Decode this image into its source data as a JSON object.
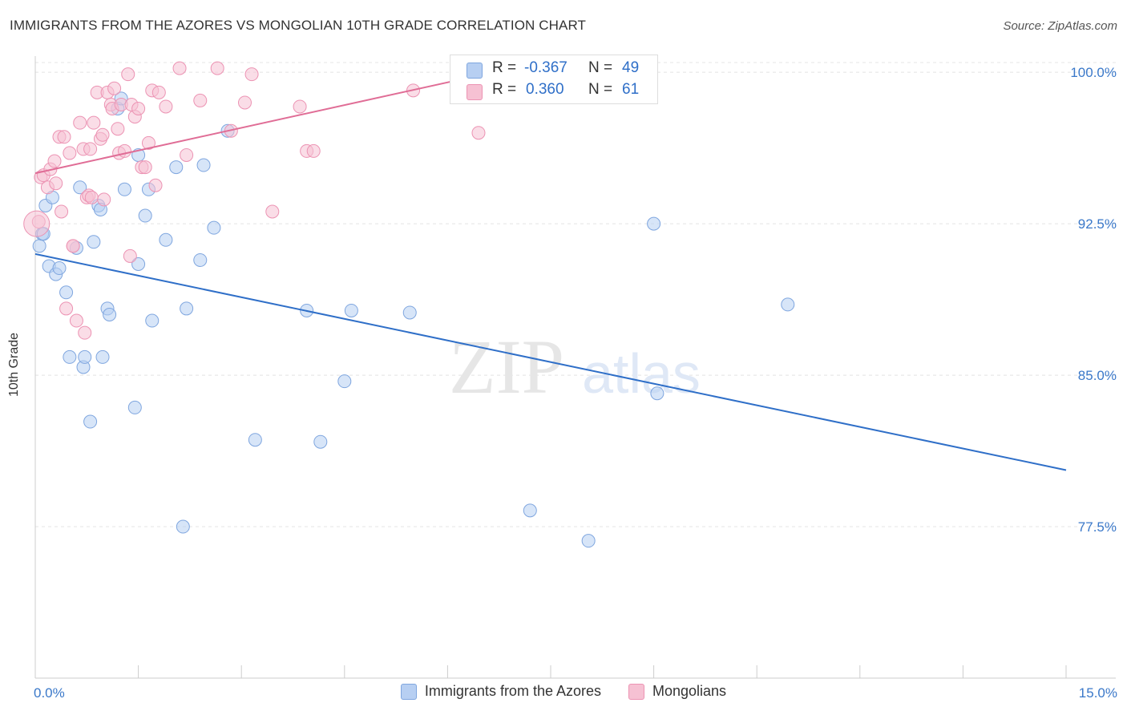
{
  "title": "IMMIGRANTS FROM THE AZORES VS MONGOLIAN 10TH GRADE CORRELATION CHART",
  "source": "Source: ZipAtlas.com",
  "watermark": {
    "zip": "ZIP",
    "atlas": "atlas"
  },
  "colors": {
    "blue": "#2f6fc8",
    "blue_fill": "#b7cff2",
    "blue_edge": "#7fa6df",
    "pink": "#e06d96",
    "pink_fill": "#f6c1d3",
    "pink_edge": "#ec93b3",
    "tick_label": "#3a78c9",
    "grid": "#e4e4e4"
  },
  "chart_data": {
    "type": "scatter",
    "title": "IMMIGRANTS FROM THE AZORES VS MONGOLIAN 10TH GRADE CORRELATION CHART",
    "xlabel": "",
    "ylabel": "10th Grade",
    "xlim": [
      0,
      15
    ],
    "ylim": [
      70,
      100.8
    ],
    "x_tick_labels": [
      {
        "value": 0,
        "label": "0.0%"
      },
      {
        "value": 15,
        "label": "15.0%"
      }
    ],
    "y_tick_labels": [
      {
        "value": 100,
        "label": "100.0%"
      },
      {
        "value": 92.5,
        "label": "92.5%"
      },
      {
        "value": 85,
        "label": "85.0%"
      },
      {
        "value": 77.5,
        "label": "77.5%"
      }
    ],
    "legend_position": "bottom",
    "series": [
      {
        "name": "Immigrants from the Azores",
        "color_key": "blue",
        "R_label": "R =",
        "R": "-0.367",
        "N_label": "N =",
        "N": "49",
        "trend": {
          "x": [
            0,
            15
          ],
          "y": [
            91.0,
            80.3
          ]
        },
        "points": [
          [
            0.06,
            91.4
          ],
          [
            0.1,
            92.0
          ],
          [
            0.15,
            93.4
          ],
          [
            0.2,
            90.4
          ],
          [
            0.25,
            93.8
          ],
          [
            0.3,
            90.0
          ],
          [
            0.35,
            90.3
          ],
          [
            0.45,
            89.1
          ],
          [
            0.5,
            85.9
          ],
          [
            0.6,
            91.3
          ],
          [
            0.65,
            94.3
          ],
          [
            0.7,
            85.4
          ],
          [
            0.72,
            85.9
          ],
          [
            0.8,
            82.7
          ],
          [
            0.85,
            91.6
          ],
          [
            0.92,
            93.4
          ],
          [
            0.95,
            93.2
          ],
          [
            0.98,
            85.9
          ],
          [
            1.05,
            88.3
          ],
          [
            1.08,
            88.0
          ],
          [
            1.2,
            98.2
          ],
          [
            1.25,
            98.7
          ],
          [
            1.3,
            94.2
          ],
          [
            1.5,
            90.5
          ],
          [
            1.45,
            83.4
          ],
          [
            1.5,
            95.9
          ],
          [
            1.6,
            92.9
          ],
          [
            1.65,
            94.2
          ],
          [
            1.7,
            87.7
          ],
          [
            1.9,
            91.7
          ],
          [
            2.05,
            95.3
          ],
          [
            2.15,
            77.5
          ],
          [
            2.2,
            88.3
          ],
          [
            2.4,
            90.7
          ],
          [
            2.45,
            95.4
          ],
          [
            2.6,
            92.3
          ],
          [
            2.8,
            97.1
          ],
          [
            3.2,
            81.8
          ],
          [
            3.95,
            88.2
          ],
          [
            4.15,
            81.7
          ],
          [
            4.5,
            84.7
          ],
          [
            4.6,
            88.2
          ],
          [
            5.45,
            88.1
          ],
          [
            7.2,
            78.3
          ],
          [
            8.05,
            76.8
          ],
          [
            9.0,
            92.5
          ],
          [
            9.05,
            84.1
          ],
          [
            10.95,
            88.5
          ],
          [
            0.12,
            92.0
          ]
        ]
      },
      {
        "name": "Mongolians",
        "color_key": "pink",
        "R_label": "R =",
        "R": "0.360",
        "N_label": "N =",
        "N": "61",
        "trend": {
          "x": [
            0,
            6.4
          ],
          "y": [
            95.0,
            99.8
          ]
        },
        "points": [
          [
            0.05,
            92.6
          ],
          [
            0.08,
            94.8
          ],
          [
            0.12,
            94.9
          ],
          [
            0.18,
            94.3
          ],
          [
            0.22,
            95.2
          ],
          [
            0.28,
            95.6
          ],
          [
            0.3,
            94.5
          ],
          [
            0.35,
            96.8
          ],
          [
            0.38,
            93.1
          ],
          [
            0.42,
            96.8
          ],
          [
            0.45,
            88.3
          ],
          [
            0.5,
            96.0
          ],
          [
            0.55,
            91.4
          ],
          [
            0.6,
            87.7
          ],
          [
            0.65,
            97.5
          ],
          [
            0.7,
            96.2
          ],
          [
            0.72,
            87.1
          ],
          [
            0.75,
            93.8
          ],
          [
            0.78,
            93.9
          ],
          [
            0.8,
            96.2
          ],
          [
            0.82,
            93.8
          ],
          [
            0.85,
            97.5
          ],
          [
            0.9,
            99.0
          ],
          [
            0.95,
            96.7
          ],
          [
            0.98,
            96.9
          ],
          [
            1.0,
            93.7
          ],
          [
            1.05,
            99.0
          ],
          [
            1.1,
            98.4
          ],
          [
            1.12,
            98.2
          ],
          [
            1.15,
            99.2
          ],
          [
            1.2,
            97.2
          ],
          [
            1.22,
            96.0
          ],
          [
            1.25,
            98.4
          ],
          [
            1.3,
            96.1
          ],
          [
            1.35,
            99.9
          ],
          [
            1.38,
            90.9
          ],
          [
            1.4,
            98.4
          ],
          [
            1.45,
            97.8
          ],
          [
            1.5,
            98.2
          ],
          [
            1.55,
            95.3
          ],
          [
            1.6,
            95.3
          ],
          [
            1.65,
            96.5
          ],
          [
            1.7,
            99.1
          ],
          [
            1.75,
            94.4
          ],
          [
            1.8,
            99.0
          ],
          [
            1.9,
            98.3
          ],
          [
            2.1,
            100.2
          ],
          [
            2.2,
            95.9
          ],
          [
            2.4,
            98.6
          ],
          [
            2.65,
            100.2
          ],
          [
            2.85,
            97.1
          ],
          [
            3.05,
            98.5
          ],
          [
            3.15,
            99.9
          ],
          [
            3.45,
            93.1
          ],
          [
            3.85,
            98.3
          ],
          [
            3.95,
            96.1
          ],
          [
            4.05,
            96.1
          ],
          [
            5.5,
            99.1
          ],
          [
            6.45,
            97.0
          ],
          [
            0.02,
            92.5
          ],
          [
            0.55,
            91.4
          ]
        ]
      }
    ]
  }
}
